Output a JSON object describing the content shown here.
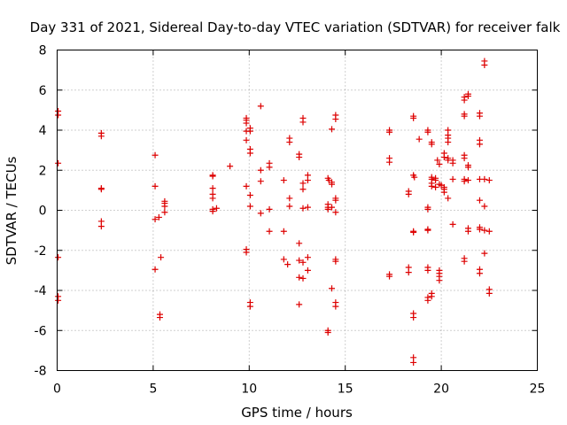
{
  "chart_data": {
    "type": "scatter",
    "title": "Day 331 of 2021, Sidereal Day-to-day VTEC variation (SDTVAR) for receiver falk",
    "xlabel": "GPS time / hours",
    "ylabel": "SDTVAR / TECUs",
    "xlim": [
      0,
      25
    ],
    "ylim": [
      -8,
      8
    ],
    "x_ticks": [
      0,
      5,
      10,
      15,
      20,
      25
    ],
    "x_tick_labels": [
      "0",
      "5",
      "10",
      "15",
      "20",
      "25"
    ],
    "y_ticks": [
      -8,
      -6,
      -4,
      -2,
      0,
      2,
      4,
      6,
      8
    ],
    "y_tick_labels": [
      "-8",
      "-6",
      "-4",
      "-2",
      "0",
      "2",
      "4",
      "6",
      "8"
    ],
    "grid": true,
    "marker": "plus",
    "series_color": "#dd0000",
    "points": [
      [
        0.05,
        4.95
      ],
      [
        0.05,
        4.75
      ],
      [
        0.05,
        2.35
      ],
      [
        0.05,
        -2.35
      ],
      [
        0.05,
        -4.3
      ],
      [
        0.05,
        -4.5
      ],
      [
        2.3,
        3.85
      ],
      [
        2.3,
        3.7
      ],
      [
        2.3,
        1.1
      ],
      [
        2.3,
        1.05
      ],
      [
        2.3,
        -0.55
      ],
      [
        2.3,
        -0.8
      ],
      [
        5.1,
        2.75
      ],
      [
        5.1,
        1.2
      ],
      [
        5.1,
        -0.45
      ],
      [
        5.1,
        -2.95
      ],
      [
        5.3,
        -0.35
      ],
      [
        5.4,
        -2.35
      ],
      [
        5.35,
        -5.2
      ],
      [
        5.35,
        -5.35
      ],
      [
        5.6,
        0.45
      ],
      [
        5.6,
        0.35
      ],
      [
        5.6,
        0.2
      ],
      [
        5.6,
        -0.1
      ],
      [
        8.1,
        1.75
      ],
      [
        8.1,
        1.7
      ],
      [
        8.1,
        1.1
      ],
      [
        8.1,
        0.8
      ],
      [
        8.1,
        0.6
      ],
      [
        8.1,
        0.05
      ],
      [
        8.1,
        -0.05
      ],
      [
        8.3,
        0.1
      ],
      [
        9.0,
        2.2
      ],
      [
        9.85,
        4.6
      ],
      [
        9.85,
        4.5
      ],
      [
        9.85,
        4.35
      ],
      [
        9.85,
        3.95
      ],
      [
        9.85,
        3.5
      ],
      [
        9.85,
        1.2
      ],
      [
        9.85,
        -1.95
      ],
      [
        9.85,
        -2.1
      ],
      [
        10.05,
        4.1
      ],
      [
        10.05,
        3.95
      ],
      [
        10.05,
        3.05
      ],
      [
        10.05,
        2.85
      ],
      [
        10.05,
        0.75
      ],
      [
        10.05,
        0.2
      ],
      [
        10.05,
        -4.6
      ],
      [
        10.05,
        -4.8
      ],
      [
        10.6,
        5.2
      ],
      [
        10.6,
        2.0
      ],
      [
        10.6,
        1.45
      ],
      [
        10.6,
        -0.15
      ],
      [
        11.05,
        2.35
      ],
      [
        11.05,
        2.15
      ],
      [
        11.05,
        0.05
      ],
      [
        11.05,
        -1.05
      ],
      [
        11.8,
        1.5
      ],
      [
        11.8,
        -1.05
      ],
      [
        11.8,
        -2.45
      ],
      [
        12.0,
        -2.7
      ],
      [
        12.1,
        3.6
      ],
      [
        12.1,
        3.4
      ],
      [
        12.1,
        0.6
      ],
      [
        12.1,
        0.2
      ],
      [
        12.6,
        2.8
      ],
      [
        12.6,
        2.65
      ],
      [
        12.6,
        -1.65
      ],
      [
        12.6,
        -2.5
      ],
      [
        12.6,
        -3.35
      ],
      [
        12.6,
        -4.7
      ],
      [
        12.8,
        4.6
      ],
      [
        12.8,
        4.4
      ],
      [
        12.8,
        1.35
      ],
      [
        12.8,
        1.05
      ],
      [
        12.8,
        0.1
      ],
      [
        12.8,
        -2.6
      ],
      [
        12.8,
        -3.4
      ],
      [
        13.05,
        1.75
      ],
      [
        13.05,
        1.5
      ],
      [
        13.05,
        0.15
      ],
      [
        13.05,
        -2.35
      ],
      [
        13.05,
        -3.0
      ],
      [
        14.1,
        1.6
      ],
      [
        14.15,
        1.5
      ],
      [
        14.1,
        0.3
      ],
      [
        14.1,
        0.15
      ],
      [
        14.1,
        0.05
      ],
      [
        14.1,
        -6.0
      ],
      [
        14.1,
        -6.1
      ],
      [
        14.3,
        4.05
      ],
      [
        14.3,
        1.4
      ],
      [
        14.3,
        1.3
      ],
      [
        14.3,
        0.15
      ],
      [
        14.3,
        -3.9
      ],
      [
        14.5,
        4.75
      ],
      [
        14.5,
        4.55
      ],
      [
        14.5,
        0.6
      ],
      [
        14.5,
        0.5
      ],
      [
        14.5,
        -0.1
      ],
      [
        14.5,
        -2.45
      ],
      [
        14.5,
        -2.55
      ],
      [
        14.5,
        -4.6
      ],
      [
        14.5,
        -4.8
      ],
      [
        17.3,
        4.0
      ],
      [
        17.3,
        3.9
      ],
      [
        17.3,
        2.6
      ],
      [
        17.3,
        2.4
      ],
      [
        17.3,
        -3.2
      ],
      [
        17.3,
        -3.3
      ],
      [
        18.3,
        0.95
      ],
      [
        18.3,
        0.8
      ],
      [
        18.3,
        -2.85
      ],
      [
        18.3,
        -3.1
      ],
      [
        18.55,
        4.7
      ],
      [
        18.55,
        4.6
      ],
      [
        18.55,
        1.75
      ],
      [
        18.6,
        1.65
      ],
      [
        18.55,
        -1.05
      ],
      [
        18.55,
        -1.1
      ],
      [
        18.55,
        -5.15
      ],
      [
        18.55,
        -5.35
      ],
      [
        18.55,
        -7.35
      ],
      [
        18.55,
        -7.6
      ],
      [
        18.85,
        3.55
      ],
      [
        19.3,
        4.0
      ],
      [
        19.3,
        3.9
      ],
      [
        19.3,
        0.15
      ],
      [
        19.3,
        0.05
      ],
      [
        19.3,
        -0.95
      ],
      [
        19.3,
        -1.0
      ],
      [
        19.3,
        -2.85
      ],
      [
        19.3,
        -3.0
      ],
      [
        19.3,
        -4.35
      ],
      [
        19.3,
        -4.5
      ],
      [
        19.5,
        3.4
      ],
      [
        19.5,
        3.3
      ],
      [
        19.5,
        1.65
      ],
      [
        19.5,
        1.55
      ],
      [
        19.5,
        1.35
      ],
      [
        19.5,
        1.2
      ],
      [
        19.5,
        -4.15
      ],
      [
        19.5,
        -4.3
      ],
      [
        19.7,
        1.6
      ],
      [
        19.7,
        1.5
      ],
      [
        19.7,
        1.15
      ],
      [
        19.8,
        2.5
      ],
      [
        19.9,
        2.3
      ],
      [
        19.9,
        1.3
      ],
      [
        20.0,
        1.25
      ],
      [
        19.9,
        -3.0
      ],
      [
        19.9,
        -3.15
      ],
      [
        19.9,
        -3.3
      ],
      [
        19.9,
        -3.5
      ],
      [
        20.15,
        2.85
      ],
      [
        20.15,
        2.65
      ],
      [
        20.15,
        1.15
      ],
      [
        20.15,
        1.05
      ],
      [
        20.15,
        0.9
      ],
      [
        20.35,
        4.0
      ],
      [
        20.35,
        3.75
      ],
      [
        20.35,
        3.6
      ],
      [
        20.35,
        3.4
      ],
      [
        20.35,
        2.6
      ],
      [
        20.35,
        2.5
      ],
      [
        20.35,
        0.6
      ],
      [
        20.6,
        2.5
      ],
      [
        20.6,
        2.35
      ],
      [
        20.6,
        1.55
      ],
      [
        20.6,
        -0.7
      ],
      [
        21.2,
        5.65
      ],
      [
        21.2,
        5.5
      ],
      [
        21.2,
        4.8
      ],
      [
        21.2,
        4.7
      ],
      [
        21.2,
        2.75
      ],
      [
        21.2,
        2.6
      ],
      [
        21.2,
        1.55
      ],
      [
        21.2,
        1.45
      ],
      [
        21.2,
        -2.4
      ],
      [
        21.2,
        -2.55
      ],
      [
        21.4,
        5.8
      ],
      [
        21.4,
        5.7
      ],
      [
        21.4,
        2.25
      ],
      [
        21.4,
        2.15
      ],
      [
        21.4,
        1.5
      ],
      [
        21.4,
        -0.9
      ],
      [
        21.4,
        -1.05
      ],
      [
        22.0,
        4.85
      ],
      [
        22.0,
        4.7
      ],
      [
        22.0,
        3.5
      ],
      [
        22.0,
        3.3
      ],
      [
        22.0,
        1.55
      ],
      [
        22.0,
        0.5
      ],
      [
        22.0,
        -0.85
      ],
      [
        22.0,
        -0.95
      ],
      [
        22.0,
        -2.95
      ],
      [
        22.0,
        -3.15
      ],
      [
        22.25,
        7.45
      ],
      [
        22.25,
        7.25
      ],
      [
        22.25,
        1.55
      ],
      [
        22.25,
        0.2
      ],
      [
        22.25,
        -1.0
      ],
      [
        22.25,
        -2.15
      ],
      [
        22.5,
        1.5
      ],
      [
        22.5,
        -1.05
      ],
      [
        22.5,
        -3.95
      ],
      [
        22.5,
        -4.15
      ]
    ]
  }
}
